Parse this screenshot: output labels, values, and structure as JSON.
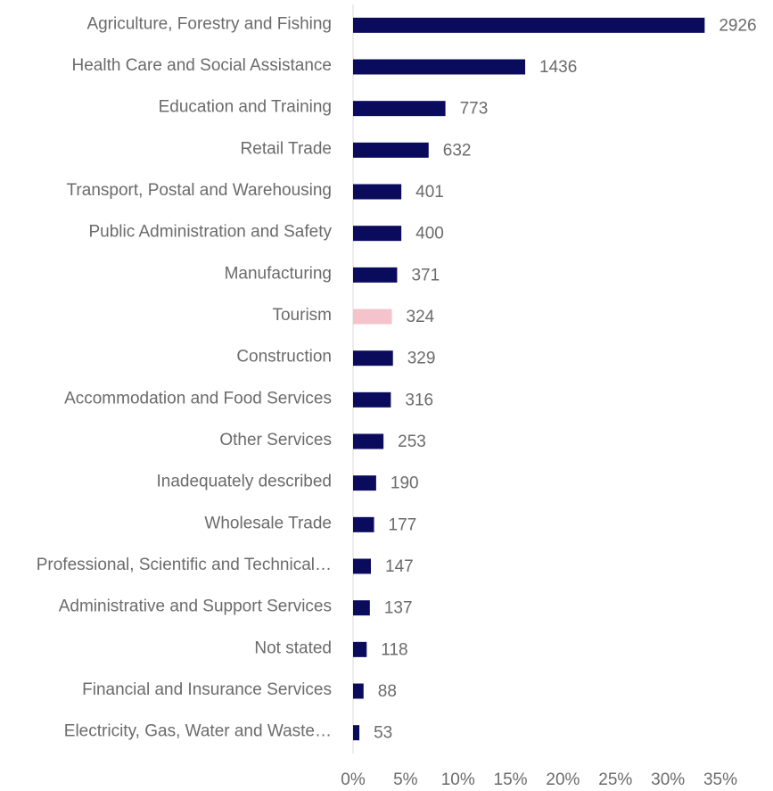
{
  "chart_data": {
    "type": "hbar",
    "categories": [
      "Agriculture, Forestry and Fishing",
      "Health Care and Social Assistance",
      "Education and Training",
      "Retail Trade",
      "Transport, Postal and Warehousing",
      "Public Administration and Safety",
      "Manufacturing",
      "Tourism",
      "Construction",
      "Accommodation and Food Services",
      "Other Services",
      "Inadequately described",
      "Wholesale Trade",
      "Professional, Scientific and Technical…",
      "Administrative and Support Services",
      "Not stated",
      "Financial and Insurance Services",
      "Electricity, Gas, Water and Waste…"
    ],
    "values": [
      33.5,
      16.4,
      8.8,
      7.2,
      4.6,
      4.6,
      4.2,
      3.7,
      3.8,
      3.6,
      2.9,
      2.2,
      2.0,
      1.7,
      1.6,
      1.3,
      1.0,
      0.6
    ],
    "counts": [
      2926,
      1436,
      773,
      632,
      401,
      400,
      371,
      324,
      329,
      316,
      253,
      190,
      177,
      147,
      137,
      118,
      88,
      53
    ],
    "colors": [
      "#0b0b5e",
      "#0b0b5e",
      "#0b0b5e",
      "#0b0b5e",
      "#0b0b5e",
      "#0b0b5e",
      "#0b0b5e",
      "#f4c3cc",
      "#0b0b5e",
      "#0b0b5e",
      "#0b0b5e",
      "#0b0b5e",
      "#0b0b5e",
      "#0b0b5e",
      "#0b0b5e",
      "#0b0b5e",
      "#0b0b5e",
      "#0b0b5e"
    ],
    "xlim": [
      0,
      35
    ],
    "xticks": [
      {
        "value": 0,
        "label": "0%"
      },
      {
        "value": 5,
        "label": "5%"
      },
      {
        "value": 10,
        "label": "10%"
      },
      {
        "value": 15,
        "label": "15%"
      },
      {
        "value": 20,
        "label": "20%"
      },
      {
        "value": 25,
        "label": "25%"
      },
      {
        "value": 30,
        "label": "30%"
      },
      {
        "value": 35,
        "label": "35%"
      }
    ]
  }
}
